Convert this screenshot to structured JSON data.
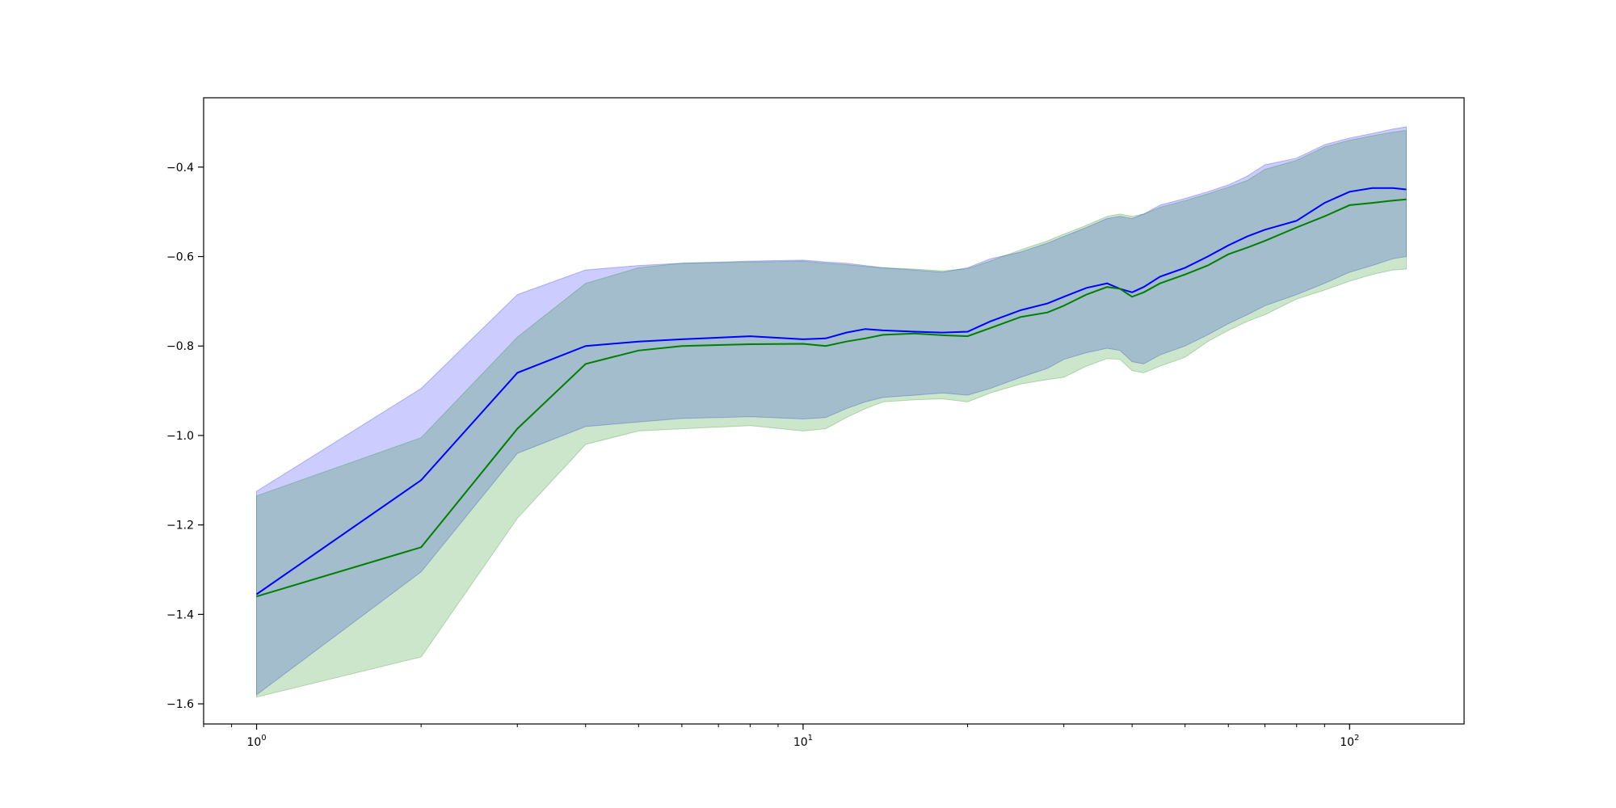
{
  "chart_data": {
    "type": "line",
    "title": "",
    "xlabel": "",
    "ylabel": "",
    "xscale": "log",
    "xlim": [
      0.8,
      162
    ],
    "ylim": [
      -1.645,
      -0.245
    ],
    "grid": false,
    "legend": "none",
    "xticks": [
      {
        "value": 1,
        "base": "10",
        "exp": "0"
      },
      {
        "value": 10,
        "base": "10",
        "exp": "1"
      },
      {
        "value": 100,
        "base": "10",
        "exp": "2"
      }
    ],
    "yticks": [
      {
        "value": -0.4,
        "label": "−0.4"
      },
      {
        "value": -0.6,
        "label": "−0.6"
      },
      {
        "value": -0.8,
        "label": "−0.8"
      },
      {
        "value": -1.0,
        "label": "−1.0"
      },
      {
        "value": -1.2,
        "label": "−1.2"
      },
      {
        "value": -1.4,
        "label": "−1.4"
      },
      {
        "value": -1.6,
        "label": "−1.6"
      }
    ],
    "x": [
      1,
      2,
      3,
      4,
      5,
      6,
      8,
      10,
      11,
      12,
      13,
      14,
      16,
      18,
      20,
      22,
      25,
      28,
      30,
      33,
      36,
      38,
      40,
      42,
      45,
      50,
      55,
      60,
      65,
      70,
      80,
      90,
      100,
      110,
      120,
      127
    ],
    "series": [
      {
        "color": "#0000ff",
        "band_color": "#0000ff",
        "mean": [
          -1.355,
          -1.1,
          -0.86,
          -0.8,
          -0.79,
          -0.785,
          -0.778,
          -0.785,
          -0.783,
          -0.77,
          -0.762,
          -0.765,
          -0.768,
          -0.77,
          -0.768,
          -0.745,
          -0.72,
          -0.705,
          -0.69,
          -0.67,
          -0.66,
          -0.672,
          -0.68,
          -0.668,
          -0.645,
          -0.625,
          -0.6,
          -0.575,
          -0.555,
          -0.54,
          -0.52,
          -0.48,
          -0.455,
          -0.447,
          -0.447,
          -0.45
        ],
        "upper": [
          -1.125,
          -0.895,
          -0.685,
          -0.63,
          -0.62,
          -0.615,
          -0.61,
          -0.608,
          -0.612,
          -0.615,
          -0.62,
          -0.625,
          -0.63,
          -0.635,
          -0.625,
          -0.605,
          -0.59,
          -0.57,
          -0.555,
          -0.535,
          -0.515,
          -0.51,
          -0.515,
          -0.505,
          -0.485,
          -0.47,
          -0.455,
          -0.44,
          -0.42,
          -0.395,
          -0.38,
          -0.35,
          -0.335,
          -0.325,
          -0.315,
          -0.31
        ],
        "lower": [
          -1.58,
          -1.305,
          -1.04,
          -0.98,
          -0.97,
          -0.962,
          -0.958,
          -0.963,
          -0.96,
          -0.94,
          -0.925,
          -0.915,
          -0.91,
          -0.905,
          -0.91,
          -0.895,
          -0.87,
          -0.85,
          -0.83,
          -0.815,
          -0.805,
          -0.81,
          -0.835,
          -0.84,
          -0.82,
          -0.8,
          -0.775,
          -0.75,
          -0.73,
          -0.71,
          -0.685,
          -0.66,
          -0.635,
          -0.62,
          -0.605,
          -0.6
        ]
      },
      {
        "color": "#008000",
        "band_color": "#008000",
        "mean": [
          -1.36,
          -1.25,
          -0.985,
          -0.84,
          -0.81,
          -0.8,
          -0.796,
          -0.795,
          -0.8,
          -0.79,
          -0.783,
          -0.775,
          -0.772,
          -0.776,
          -0.778,
          -0.76,
          -0.735,
          -0.725,
          -0.71,
          -0.685,
          -0.668,
          -0.672,
          -0.69,
          -0.68,
          -0.66,
          -0.64,
          -0.62,
          -0.595,
          -0.58,
          -0.565,
          -0.535,
          -0.51,
          -0.485,
          -0.48,
          -0.475,
          -0.472
        ],
        "upper": [
          -1.135,
          -1.005,
          -0.78,
          -0.66,
          -0.625,
          -0.615,
          -0.612,
          -0.61,
          -0.615,
          -0.618,
          -0.622,
          -0.625,
          -0.628,
          -0.632,
          -0.627,
          -0.61,
          -0.585,
          -0.565,
          -0.55,
          -0.53,
          -0.51,
          -0.505,
          -0.51,
          -0.505,
          -0.49,
          -0.475,
          -0.46,
          -0.445,
          -0.43,
          -0.405,
          -0.385,
          -0.355,
          -0.34,
          -0.33,
          -0.322,
          -0.318
        ],
        "lower": [
          -1.585,
          -1.495,
          -1.185,
          -1.02,
          -0.99,
          -0.985,
          -0.978,
          -0.99,
          -0.985,
          -0.96,
          -0.94,
          -0.925,
          -0.92,
          -0.918,
          -0.925,
          -0.905,
          -0.885,
          -0.875,
          -0.87,
          -0.845,
          -0.828,
          -0.83,
          -0.855,
          -0.86,
          -0.845,
          -0.825,
          -0.79,
          -0.765,
          -0.745,
          -0.73,
          -0.695,
          -0.675,
          -0.655,
          -0.64,
          -0.63,
          -0.628
        ]
      }
    ]
  }
}
